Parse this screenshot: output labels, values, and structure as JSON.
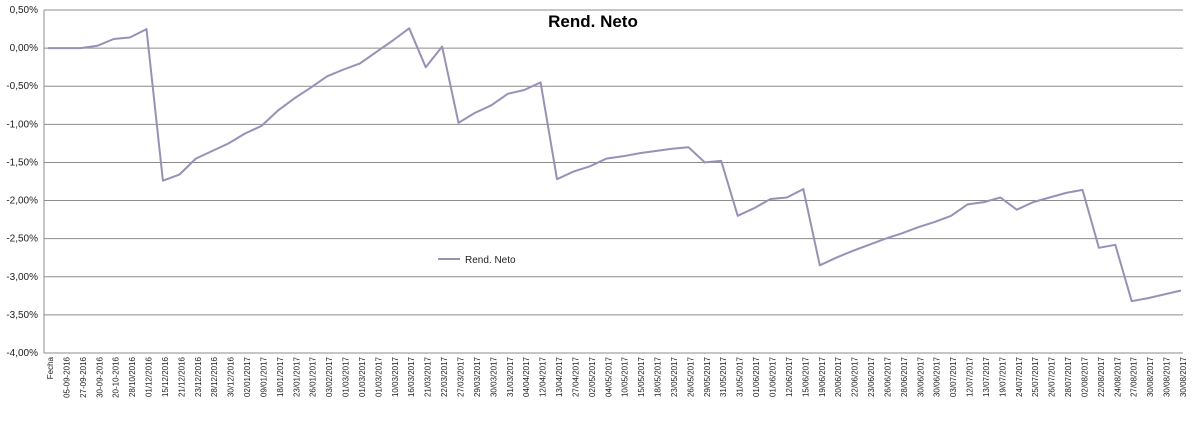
{
  "chart_data": {
    "type": "line",
    "title": "Rend. Neto",
    "xlabel": "",
    "ylabel": "",
    "ylim": [
      -4.0,
      0.5
    ],
    "grid": true,
    "legend_position": "center-left",
    "y_ticks": [
      "0,50%",
      "0,00%",
      "-0,50%",
      "-1,00%",
      "-1,50%",
      "-2,00%",
      "-2,50%",
      "-3,00%",
      "-3,50%",
      "-4,00%"
    ],
    "x_ticks": [
      "Fecha",
      "05-09-2016",
      "27-09-2016",
      "30-09-2016",
      "20-10-2016",
      "28/10/2016",
      "01/12/2016",
      "15/12/2016",
      "21/12/2016",
      "23/12/2016",
      "28/12/2016",
      "30/12/2016",
      "02/01/2017",
      "09/01/2017",
      "18/01/2017",
      "23/01/2017",
      "26/01/2017",
      "03/02/2017",
      "01/03/2017",
      "01/03/2017",
      "01/03/2017",
      "10/03/2017",
      "16/03/2017",
      "21/03/2017",
      "22/03/2017",
      "27/03/2017",
      "29/03/2017",
      "30/03/2017",
      "31/03/2017",
      "04/04/2017",
      "12/04/2017",
      "13/04/2017",
      "27/04/2017",
      "02/05/2017",
      "04/05/2017",
      "10/05/2017",
      "15/05/2017",
      "18/05/2017",
      "23/05/2017",
      "26/05/2017",
      "29/05/2017",
      "31/05/2017",
      "31/05/2017",
      "01/06/2017",
      "01/06/2017",
      "12/06/2017",
      "15/06/2017",
      "19/06/2017",
      "20/06/2017",
      "22/06/2017",
      "23/06/2017",
      "26/06/2017",
      "28/06/2017",
      "30/06/2017",
      "30/06/2017",
      "03/07/2017",
      "12/07/2017",
      "13/07/2017",
      "19/07/2017",
      "24/07/2017",
      "25/07/2017",
      "26/07/2017",
      "28/07/2017",
      "02/08/2017",
      "22/08/2017",
      "24/08/2017",
      "27/08/2017",
      "30/08/2017",
      "30/08/2017",
      "30/08/2017"
    ],
    "series": [
      {
        "name": "Rend. Neto",
        "color": "#9a8fb8",
        "values": [
          0.0,
          0.0,
          0.0,
          0.03,
          0.12,
          0.14,
          0.25,
          -1.74,
          -1.66,
          -1.45,
          -1.35,
          -1.25,
          -1.12,
          -1.02,
          -0.82,
          -0.66,
          -0.52,
          -0.37,
          -0.28,
          -0.2,
          -0.05,
          0.1,
          0.26,
          -0.25,
          0.02,
          -0.98,
          -0.85,
          -0.75,
          -0.6,
          -0.55,
          -0.45,
          -1.72,
          -1.62,
          -1.55,
          -1.45,
          -1.42,
          -1.38,
          -1.35,
          -1.32,
          -1.3,
          -1.5,
          -1.48,
          -2.2,
          -2.1,
          -1.98,
          -1.96,
          -1.85,
          -2.85,
          -2.75,
          -2.66,
          -2.58,
          -2.5,
          -2.43,
          -2.35,
          -2.28,
          -2.2,
          -2.05,
          -2.02,
          -1.96,
          -2.12,
          -2.02,
          -1.96,
          -1.9,
          -1.86,
          -2.62,
          -2.58,
          -3.32,
          -3.28,
          -3.23,
          -3.18
        ]
      }
    ]
  }
}
